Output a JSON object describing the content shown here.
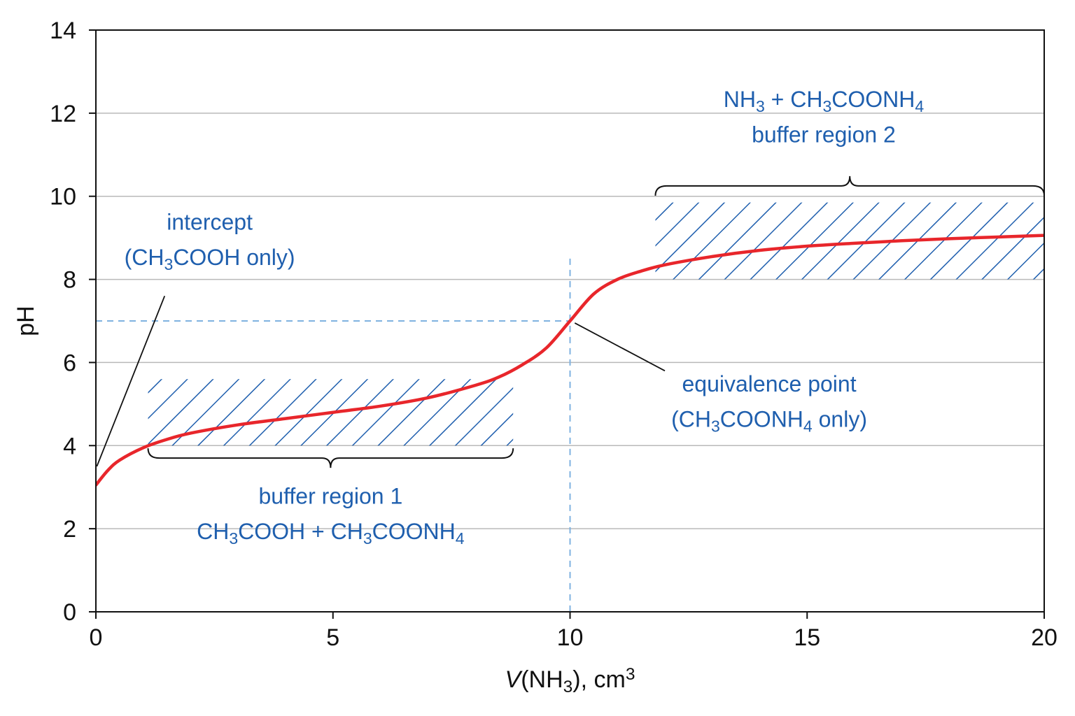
{
  "chart_data": {
    "type": "line",
    "xlabel": "V(NH3), cm3",
    "xlabel_parts": {
      "var": "V",
      "open": "(NH",
      "sub": "3",
      "close": "), cm",
      "sup": "3"
    },
    "ylabel": "pH",
    "xlim": [
      0,
      20
    ],
    "ylim": [
      0,
      14
    ],
    "xticks": [
      0,
      5,
      10,
      15,
      20
    ],
    "yticks": [
      0,
      2,
      4,
      6,
      8,
      10,
      12,
      14
    ],
    "grid": "horizontal",
    "colors": {
      "curve": "#e8262b",
      "annotation": "#1f5fae",
      "reference": "#7fb2e0",
      "frame": "#111111",
      "grid": "#b9b9b9"
    },
    "series": [
      {
        "x": [
          0,
          0.25,
          0.5,
          1,
          1.5,
          2,
          3,
          4,
          5,
          6,
          7,
          8,
          8.5,
          9,
          9.5,
          10,
          10.5,
          11,
          11.5,
          12,
          13,
          14,
          15,
          16,
          17,
          18,
          19,
          20
        ],
        "y": [
          3.05,
          3.4,
          3.65,
          3.95,
          4.15,
          4.3,
          4.5,
          4.65,
          4.8,
          4.95,
          5.15,
          5.45,
          5.65,
          5.95,
          6.35,
          7.0,
          7.65,
          8.0,
          8.2,
          8.35,
          8.55,
          8.7,
          8.8,
          8.87,
          8.93,
          8.98,
          9.02,
          9.06
        ]
      }
    ],
    "reference_lines": {
      "equivalence_x": 10,
      "equivalence_y": 7
    },
    "shaded_regions": [
      {
        "x": [
          1.1,
          8.8
        ],
        "y": [
          4,
          5.6
        ]
      },
      {
        "x": [
          11.8,
          20
        ],
        "y": [
          8,
          9.85
        ]
      }
    ],
    "braces": [
      {
        "x": [
          1.1,
          8.8
        ],
        "y": 3.7,
        "direction": "down"
      },
      {
        "x": [
          11.8,
          20
        ],
        "y": 10.25,
        "direction": "up"
      }
    ],
    "annotations": [
      {
        "key": "intercept",
        "lines": [
          [
            {
              "t": "intercept"
            }
          ],
          [
            {
              "t": "(CH"
            },
            {
              "t": "3",
              "sub": true
            },
            {
              "t": "COOH only)"
            }
          ]
        ],
        "x": 2.4,
        "y": [
          9.2,
          8.35
        ],
        "pointer": {
          "from": [
            1.45,
            7.6
          ],
          "to": [
            0.02,
            3.5
          ]
        }
      },
      {
        "key": "equivalence",
        "lines": [
          [
            {
              "t": "equivalence point"
            }
          ],
          [
            {
              "t": "(CH"
            },
            {
              "t": "3",
              "sub": true
            },
            {
              "t": "COONH"
            },
            {
              "t": "4",
              "sub": true
            },
            {
              "t": " only)"
            }
          ]
        ],
        "x": 14.2,
        "y": [
          5.3,
          4.45
        ],
        "pointer": {
          "from": [
            10.1,
            6.95
          ],
          "to": [
            12.0,
            5.8
          ]
        }
      },
      {
        "key": "buffer-region-1",
        "lines": [
          [
            {
              "t": "buffer region 1"
            }
          ],
          [
            {
              "t": "CH"
            },
            {
              "t": "3",
              "sub": true
            },
            {
              "t": "COOH + CH"
            },
            {
              "t": "3",
              "sub": true
            },
            {
              "t": "COONH"
            },
            {
              "t": "4",
              "sub": true
            }
          ]
        ],
        "x": 4.95,
        "y": [
          2.6,
          1.75
        ]
      },
      {
        "key": "buffer-region-2",
        "lines": [
          [
            {
              "t": "NH"
            },
            {
              "t": "3",
              "sub": true
            },
            {
              "t": " + CH"
            },
            {
              "t": "3",
              "sub": true
            },
            {
              "t": "COONH"
            },
            {
              "t": "4",
              "sub": true
            }
          ],
          [
            {
              "t": "buffer region 2"
            }
          ]
        ],
        "x": 15.35,
        "y": [
          12.15,
          11.3
        ]
      }
    ]
  }
}
